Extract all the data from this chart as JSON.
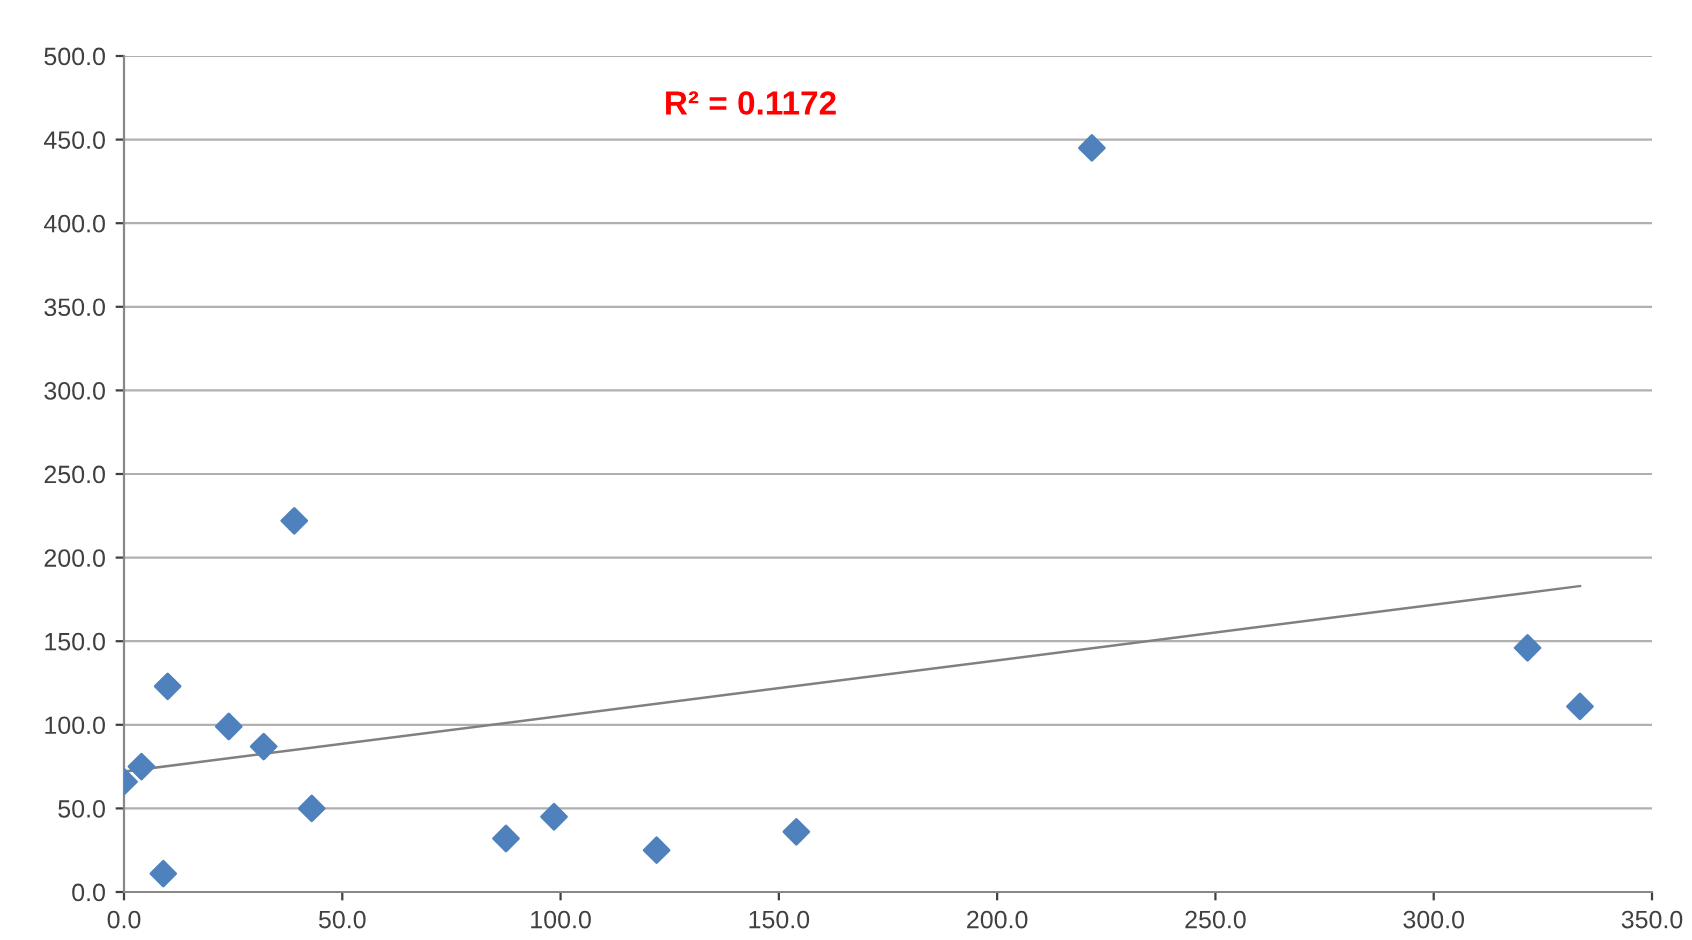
{
  "chart_data": {
    "type": "scatter",
    "series": [
      {
        "color": "#4f81bd",
        "marker": "diamond",
        "x": [
          0,
          4,
          10,
          9,
          24,
          32,
          39,
          43,
          87.5,
          98.5,
          122,
          154,
          221.7,
          321.5,
          333.5
        ],
        "values": [
          66,
          75,
          123,
          11,
          99,
          87,
          222,
          50,
          32,
          45,
          25,
          36,
          445,
          146,
          111
        ]
      },
      {
        "type": "line",
        "color": "#808080",
        "marker": "none",
        "x": [
          0,
          333.5
        ],
        "values": [
          72,
          183
        ]
      }
    ],
    "xlim": [
      0,
      350
    ],
    "ylim": [
      0,
      500
    ],
    "xticks": [
      {
        "value": 0,
        "label": "0.0"
      },
      {
        "value": 50,
        "label": "50.0"
      },
      {
        "value": 100,
        "label": "100.0"
      },
      {
        "value": 150,
        "label": "150.0"
      },
      {
        "value": 200,
        "label": "200.0"
      },
      {
        "value": 250,
        "label": "250.0"
      },
      {
        "value": 300,
        "label": "300.0"
      },
      {
        "value": 350,
        "label": "350.0"
      }
    ],
    "yticks": [
      {
        "value": 0,
        "label": "0.0"
      },
      {
        "value": 50,
        "label": "50.0"
      },
      {
        "value": 100,
        "label": "100.0"
      },
      {
        "value": 150,
        "label": "150.0"
      },
      {
        "value": 200,
        "label": "200.0"
      },
      {
        "value": 250,
        "label": "250.0"
      },
      {
        "value": 300,
        "label": "300.0"
      },
      {
        "value": 350,
        "label": "350.0"
      },
      {
        "value": 400,
        "label": "400.0"
      },
      {
        "value": 450,
        "label": "450.0"
      },
      {
        "value": 500,
        "label": "500.0"
      }
    ],
    "grid": "y",
    "annotations": [
      "R² = 0.1172"
    ]
  }
}
